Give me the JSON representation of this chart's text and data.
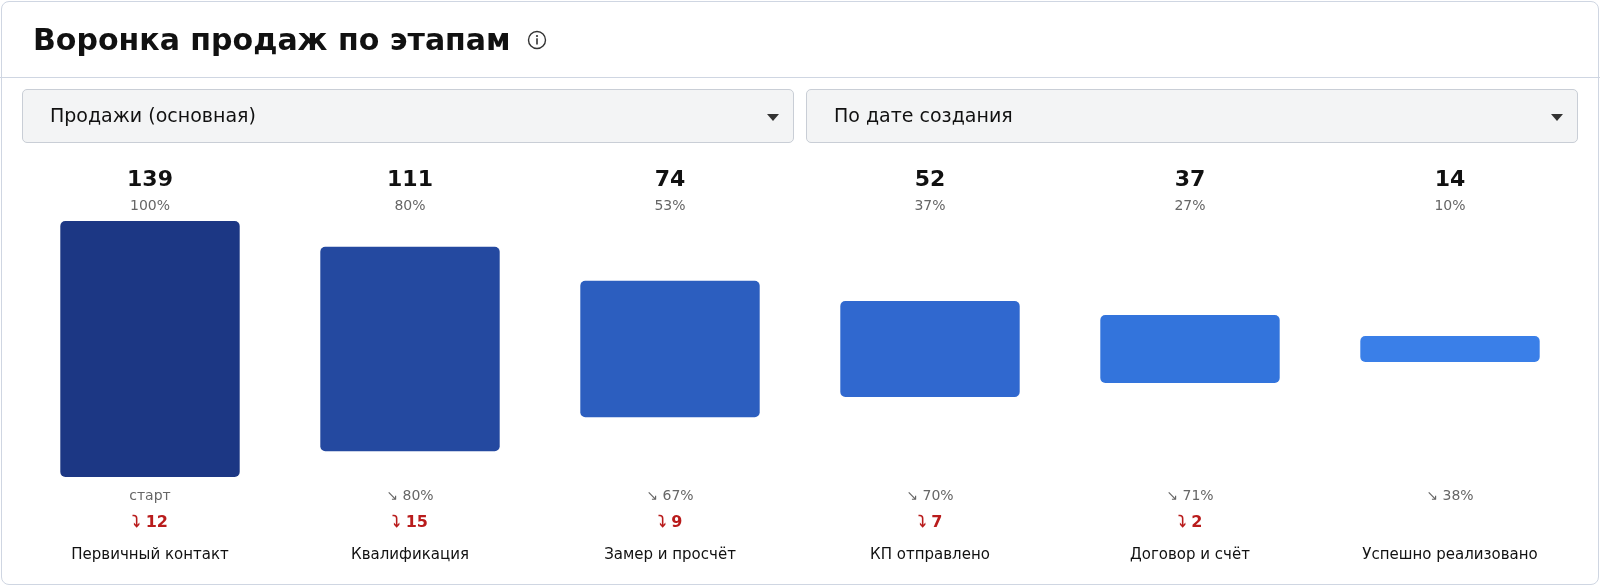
{
  "chart_data": {
    "type": "other",
    "title": "Воронка продаж по этапам",
    "data_labels": true,
    "categories": [
      "Первичный контакт",
      "Квалификация",
      "Замер и просчёт",
      "КП отправлено",
      "Договор и счёт",
      "Успешно реализовано"
    ],
    "values": [
      139,
      111,
      74,
      52,
      37,
      14
    ],
    "colors": [
      "#1c3784",
      "#2449a0",
      "#2c5ebf",
      "#3068cf",
      "#3374dc",
      "#3a7fe8"
    ],
    "annotations": [
      "Продажи (основная)",
      "По дате создания",
      {
        "text": "100%",
        "x": "Первичный контакт"
      },
      {
        "text": "старт",
        "x": "Первичный контакт"
      },
      {
        "text": "⤵ 12",
        "x": "Первичный контакт"
      },
      {
        "text": "80%",
        "x": "Квалификация"
      },
      {
        "text": "↘ 80%",
        "x": "Квалификация"
      },
      {
        "text": "⤵ 15",
        "x": "Квалификация"
      },
      {
        "text": "53%",
        "x": "Замер и просчёт"
      },
      {
        "text": "↘ 67%",
        "x": "Замер и просчёт"
      },
      {
        "text": "⤵ 9",
        "x": "Замер и просчёт"
      },
      {
        "text": "37%",
        "x": "КП отправлено"
      },
      {
        "text": "↘ 70%",
        "x": "КП отправлено"
      },
      {
        "text": "⤵ 7",
        "x": "КП отправлено"
      },
      {
        "text": "27%",
        "x": "Договор и счёт"
      },
      {
        "text": "↘ 71%",
        "x": "Договор и счёт"
      },
      {
        "text": "⤵ 2",
        "x": "Договор и счёт"
      },
      {
        "text": "10%",
        "x": "Успешно реализовано"
      },
      {
        "text": "↘ 38%",
        "x": "Успешно реализовано"
      }
    ]
  }
}
